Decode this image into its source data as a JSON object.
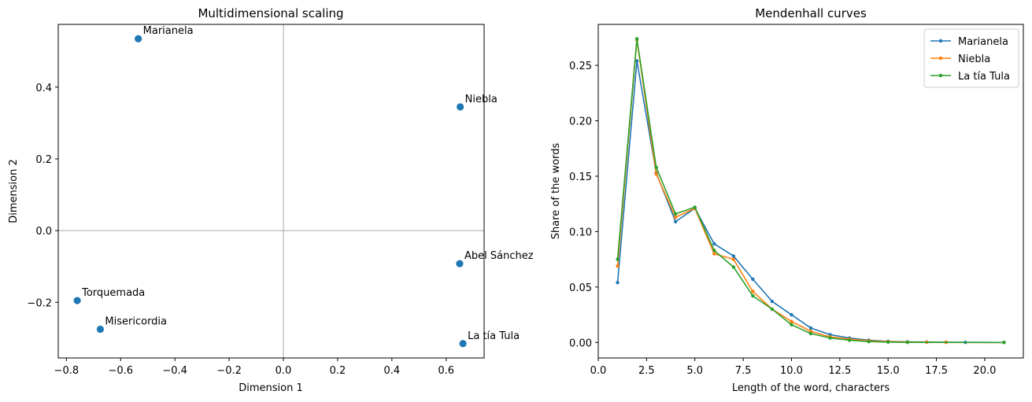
{
  "chart_data": [
    {
      "type": "scatter",
      "title": "Multidimensional scaling",
      "xlabel": "Dimension 1",
      "ylabel": "Dimension 2",
      "xlim": [
        -0.83,
        0.74
      ],
      "ylim": [
        -0.355,
        0.575
      ],
      "xticks": [
        -0.8,
        -0.6,
        -0.4,
        -0.2,
        0.0,
        0.2,
        0.4,
        0.6
      ],
      "xtick_labels": [
        "−0.8",
        "−0.6",
        "−0.4",
        "−0.2",
        "0.0",
        "0.2",
        "0.4",
        "0.6"
      ],
      "yticks": [
        -0.2,
        0.0,
        0.2,
        0.4
      ],
      "ytick_labels": [
        "−0.2",
        "0.0",
        "0.2",
        "0.4"
      ],
      "reference_lines": {
        "x": 0,
        "y": 0
      },
      "color": "#1f77b4",
      "points": [
        {
          "label": "Marianela",
          "x": -0.535,
          "y": 0.535
        },
        {
          "label": "Niebla",
          "x": 0.652,
          "y": 0.345
        },
        {
          "label": "Abel Sánchez",
          "x": 0.65,
          "y": -0.092
        },
        {
          "label": "Torquemada",
          "x": -0.76,
          "y": -0.195
        },
        {
          "label": "Misericordia",
          "x": -0.675,
          "y": -0.275
        },
        {
          "label": "La tía Tula",
          "x": 0.662,
          "y": -0.315
        }
      ]
    },
    {
      "type": "line",
      "title": "Mendenhall curves",
      "xlabel": "Length of the word, characters",
      "ylabel": "Share of the words",
      "xlim": [
        0,
        22
      ],
      "ylim": [
        -0.014,
        0.287
      ],
      "xticks": [
        0.0,
        2.5,
        5.0,
        7.5,
        10.0,
        12.5,
        15.0,
        17.5,
        20.0
      ],
      "xtick_labels": [
        "0.0",
        "2.5",
        "5.0",
        "7.5",
        "10.0",
        "12.5",
        "15.0",
        "17.5",
        "20.0"
      ],
      "yticks": [
        0.0,
        0.05,
        0.1,
        0.15,
        0.2,
        0.25
      ],
      "ytick_labels": [
        "0.00",
        "0.05",
        "0.10",
        "0.15",
        "0.20",
        "0.25"
      ],
      "legend": "top-right",
      "series": [
        {
          "name": "Marianela",
          "color": "#1f77b4",
          "x": [
            1,
            2,
            3,
            4,
            5,
            6,
            7,
            8,
            9,
            10,
            11,
            12,
            13,
            14,
            15,
            16,
            17,
            18,
            19,
            21
          ],
          "y": [
            0.054,
            0.254,
            0.153,
            0.109,
            0.121,
            0.089,
            0.078,
            0.057,
            0.037,
            0.025,
            0.013,
            0.007,
            0.004,
            0.002,
            0.001,
            0.0005,
            0.0003,
            0.0002,
            0.0001,
            0.0
          ]
        },
        {
          "name": "Niebla",
          "color": "#ff7f0e",
          "x": [
            1,
            2,
            3,
            4,
            5,
            6,
            7,
            8,
            9,
            10,
            11,
            12,
            13,
            14,
            15,
            16,
            17,
            18,
            21
          ],
          "y": [
            0.069,
            0.273,
            0.152,
            0.113,
            0.121,
            0.08,
            0.075,
            0.046,
            0.03,
            0.019,
            0.01,
            0.005,
            0.003,
            0.0015,
            0.0008,
            0.0003,
            0.0002,
            0.0001,
            0.0
          ]
        },
        {
          "name": "La tía Tula",
          "color": "#2ca02c",
          "x": [
            1,
            2,
            3,
            4,
            5,
            6,
            7,
            8,
            9,
            10,
            11,
            12,
            13,
            14,
            15,
            16,
            21
          ],
          "y": [
            0.075,
            0.274,
            0.158,
            0.116,
            0.122,
            0.083,
            0.068,
            0.042,
            0.03,
            0.016,
            0.008,
            0.004,
            0.002,
            0.0008,
            0.0003,
            0.0001,
            0.0
          ]
        }
      ]
    }
  ]
}
